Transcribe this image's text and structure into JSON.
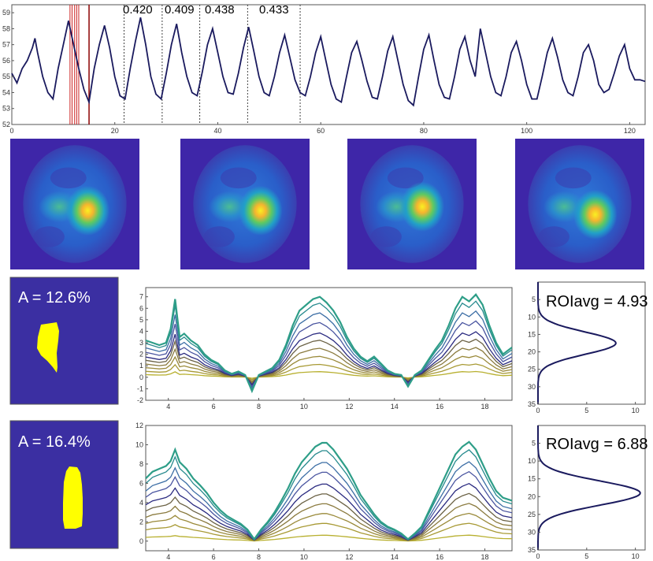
{
  "colors": {
    "navy": "#1a1a5e",
    "mask_bg": "#3b2fa2",
    "mask_fg": "#ffff00",
    "red_line": "#cc2222",
    "dark_red": "#8b0000",
    "frame": "#555555"
  },
  "chart_data": [
    {
      "id": "respiratory_trace",
      "type": "line",
      "xlim": [
        0,
        123
      ],
      "ylim": [
        52,
        59.5
      ],
      "xticks": [
        0,
        20,
        40,
        60,
        80,
        100,
        120
      ],
      "yticks": [
        52,
        53,
        54,
        55,
        56,
        57,
        58,
        59
      ],
      "series": [
        {
          "name": "signal",
          "color": "#1a1a5e",
          "x": [
            0,
            1,
            2,
            3,
            4,
            4.5,
            5,
            6,
            7,
            8,
            9,
            10,
            11,
            12,
            13,
            14,
            15,
            16,
            17,
            18,
            19,
            20,
            21,
            22,
            23,
            24,
            25,
            26,
            27,
            28,
            29,
            30,
            31,
            32,
            33,
            34,
            35,
            36,
            37,
            38,
            39,
            40,
            41,
            42,
            43,
            44,
            45,
            46,
            47,
            48,
            49,
            50,
            51,
            52,
            53,
            54,
            55,
            56,
            57,
            58,
            59,
            60,
            61,
            62,
            63,
            64,
            65,
            66,
            67,
            68,
            69,
            70,
            71,
            72,
            73,
            74,
            75,
            76,
            77,
            78,
            79,
            80,
            81,
            82,
            83,
            84,
            85,
            86,
            87,
            88,
            89,
            90,
            91,
            92,
            93,
            94,
            95,
            96,
            97,
            98,
            99,
            100,
            101,
            102,
            103,
            104,
            105,
            106,
            107,
            108,
            109,
            110,
            111,
            112,
            113,
            114,
            115,
            116,
            117,
            118,
            119,
            120,
            121,
            122,
            123
          ],
          "y": [
            55.2,
            54.6,
            55.5,
            56.0,
            56.8,
            57.4,
            56.5,
            55.0,
            54.0,
            53.6,
            55.5,
            57.0,
            58.5,
            57.0,
            55.5,
            54.2,
            53.4,
            55.5,
            57.0,
            58.2,
            56.8,
            55.0,
            53.8,
            53.6,
            55.5,
            57.2,
            58.7,
            57.0,
            55.0,
            53.9,
            53.6,
            55.2,
            57.0,
            58.3,
            56.5,
            55.0,
            54.0,
            53.8,
            55.3,
            57.0,
            58.0,
            56.5,
            55.0,
            54.0,
            53.9,
            55.2,
            56.8,
            58.1,
            56.6,
            55.0,
            54.0,
            53.8,
            55.0,
            56.5,
            57.6,
            56.2,
            54.8,
            54.0,
            53.8,
            55.0,
            56.5,
            57.5,
            56.0,
            54.5,
            53.6,
            53.4,
            55.0,
            56.5,
            57.2,
            56.0,
            54.7,
            53.7,
            53.6,
            55.0,
            56.6,
            57.5,
            56.0,
            54.5,
            53.5,
            53.2,
            55.0,
            56.7,
            57.6,
            56.0,
            54.5,
            53.7,
            53.6,
            55.0,
            56.7,
            57.5,
            56.0,
            55.0,
            58.0,
            56.5,
            55.0,
            54.0,
            53.8,
            55.0,
            56.5,
            57.2,
            56.0,
            54.5,
            53.6,
            53.6,
            55.0,
            56.5,
            57.4,
            56.2,
            54.8,
            54.0,
            53.8,
            55.0,
            56.5,
            57.0,
            56.0,
            54.5,
            54.0,
            54.2,
            55.2,
            56.3,
            57.0,
            55.5,
            54.8,
            54.8,
            54.7
          ]
        }
      ],
      "markers": {
        "red_lines": [
          11.3,
          11.7,
          12.2,
          12.6,
          13.0
        ],
        "dark_red_lines": [
          15.0
        ],
        "dotted_lines": [
          21.8,
          29.2,
          36.5,
          45.8,
          56.0
        ]
      },
      "annotations": [
        "0.420",
        "0.409",
        "0.438",
        "0.433"
      ]
    },
    {
      "id": "profile_1",
      "type": "line",
      "xlim": [
        3,
        19.2
      ],
      "ylim": [
        -2,
        7.8
      ],
      "xticks": [
        4,
        6,
        8,
        10,
        12,
        14,
        16,
        18
      ],
      "yticks": [
        -2,
        -1,
        0,
        1,
        2,
        3,
        4,
        5,
        6,
        7
      ],
      "series": [
        {
          "name": "s1",
          "color": "#2e9e88",
          "scale": 1.0
        },
        {
          "name": "s2",
          "color": "#278a8e",
          "scale": 0.92
        },
        {
          "name": "s3",
          "color": "#3c6ea5",
          "scale": 0.8
        },
        {
          "name": "s4",
          "color": "#4a55a0",
          "scale": 0.68
        },
        {
          "name": "s5",
          "color": "#2a2a80",
          "scale": 0.55
        },
        {
          "name": "s6",
          "color": "#6b6245",
          "scale": 0.46
        },
        {
          "name": "s7",
          "color": "#8a7a3e",
          "scale": 0.36
        },
        {
          "name": "s8",
          "color": "#9a8a3a",
          "scale": 0.26
        },
        {
          "name": "s9",
          "color": "#a89a35",
          "scale": 0.16
        },
        {
          "name": "s10",
          "color": "#b8b030",
          "scale": 0.07
        }
      ],
      "base_profile": {
        "x": [
          3,
          3.3,
          3.6,
          3.9,
          4.1,
          4.3,
          4.5,
          4.7,
          5.0,
          5.3,
          5.6,
          5.9,
          6.2,
          6.5,
          6.8,
          7.1,
          7.4,
          7.7,
          8.0,
          8.3,
          8.6,
          8.9,
          9.2,
          9.5,
          9.8,
          10.1,
          10.4,
          10.7,
          11.0,
          11.3,
          11.6,
          11.9,
          12.2,
          12.5,
          12.8,
          13.1,
          13.4,
          13.7,
          14.0,
          14.3,
          14.6,
          14.9,
          15.2,
          15.5,
          15.8,
          16.1,
          16.4,
          16.7,
          17.0,
          17.3,
          17.6,
          17.9,
          18.2,
          18.5,
          18.8,
          19.2
        ],
        "y": [
          3.2,
          3.0,
          2.8,
          3.0,
          4.2,
          6.8,
          3.5,
          3.8,
          3.2,
          2.8,
          2.0,
          1.5,
          1.2,
          0.6,
          0.3,
          0.5,
          0.2,
          -1.2,
          0.2,
          0.5,
          0.8,
          1.5,
          2.8,
          4.5,
          5.8,
          6.3,
          6.8,
          7.0,
          6.5,
          5.8,
          4.8,
          3.5,
          2.5,
          1.8,
          1.4,
          1.8,
          1.2,
          0.6,
          0.3,
          0.2,
          -0.8,
          0.2,
          0.6,
          1.5,
          2.4,
          3.2,
          4.5,
          6.0,
          7.0,
          6.6,
          7.2,
          6.3,
          4.5,
          3.0,
          2.0,
          2.6
        ]
      },
      "mask_label": "A = 12.6%",
      "roi_label": "ROIavg = 4.93",
      "histogram": {
        "ylim": [
          0,
          35
        ],
        "xlim": [
          0,
          11
        ],
        "xticks": [
          0,
          5,
          10
        ],
        "yticks": [
          5,
          10,
          15,
          20,
          25,
          30,
          35
        ],
        "peak_y": 17.5,
        "peak_x": 8.0,
        "sigma": 3.2
      }
    },
    {
      "id": "profile_2",
      "type": "line",
      "xlim": [
        3,
        19.2
      ],
      "ylim": [
        -1,
        12
      ],
      "xticks": [
        4,
        6,
        8,
        10,
        12,
        14,
        16,
        18
      ],
      "yticks": [
        0,
        2,
        4,
        6,
        8,
        10,
        12
      ],
      "series": [
        {
          "name": "s1",
          "color": "#2e9e88",
          "scale": 1.0
        },
        {
          "name": "s2",
          "color": "#278a8e",
          "scale": 0.92
        },
        {
          "name": "s3",
          "color": "#3c6ea5",
          "scale": 0.8
        },
        {
          "name": "s4",
          "color": "#4a55a0",
          "scale": 0.7
        },
        {
          "name": "s5",
          "color": "#2a2a80",
          "scale": 0.58
        },
        {
          "name": "s6",
          "color": "#6b6245",
          "scale": 0.48
        },
        {
          "name": "s7",
          "color": "#8a7a3e",
          "scale": 0.38
        },
        {
          "name": "s8",
          "color": "#9a8a3a",
          "scale": 0.28
        },
        {
          "name": "s9",
          "color": "#a89a35",
          "scale": 0.18
        },
        {
          "name": "s10",
          "color": "#b8b030",
          "scale": 0.06
        }
      ],
      "base_profile": {
        "x": [
          3,
          3.3,
          3.6,
          3.9,
          4.1,
          4.3,
          4.5,
          4.8,
          5.1,
          5.4,
          5.7,
          6.0,
          6.3,
          6.6,
          6.9,
          7.2,
          7.5,
          7.8,
          8.1,
          8.4,
          8.7,
          9.0,
          9.3,
          9.6,
          9.9,
          10.2,
          10.5,
          10.8,
          11.0,
          11.3,
          11.6,
          11.9,
          12.2,
          12.5,
          12.8,
          13.1,
          13.4,
          13.7,
          14.0,
          14.3,
          14.6,
          14.9,
          15.2,
          15.5,
          15.8,
          16.1,
          16.4,
          16.7,
          17.0,
          17.3,
          17.6,
          17.9,
          18.2,
          18.5,
          18.8,
          19.2
        ],
        "y": [
          6.5,
          7.2,
          7.5,
          7.8,
          8.3,
          9.5,
          8.2,
          7.5,
          6.5,
          5.8,
          5.0,
          4.0,
          3.2,
          2.6,
          2.2,
          1.8,
          1.2,
          0.2,
          1.2,
          2.0,
          3.0,
          4.2,
          5.5,
          7.0,
          8.2,
          9.0,
          9.8,
          10.2,
          10.2,
          9.5,
          8.5,
          7.5,
          6.2,
          4.8,
          3.8,
          2.8,
          2.0,
          1.5,
          1.2,
          0.8,
          0.2,
          0.8,
          1.5,
          3.0,
          4.5,
          6.0,
          7.5,
          9.0,
          9.8,
          10.3,
          9.5,
          8.0,
          6.5,
          5.2,
          4.5,
          4.2
        ]
      },
      "mask_label": "A = 16.4%",
      "roi_label": "ROIavg = 6.88",
      "histogram": {
        "ylim": [
          0,
          35
        ],
        "xlim": [
          0,
          11
        ],
        "xticks": [
          0,
          5,
          10
        ],
        "yticks": [
          5,
          10,
          15,
          20,
          25,
          30,
          35
        ],
        "peak_y": 19.0,
        "peak_x": 10.5,
        "sigma": 3.4
      }
    }
  ],
  "heatmaps": [
    {
      "name": "frame-1",
      "hot_x": 0.6,
      "hot_y": 0.55,
      "left_lobe": 0.3
    },
    {
      "name": "frame-2",
      "hot_x": 0.62,
      "hot_y": 0.55,
      "left_lobe": 0.28
    },
    {
      "name": "frame-3",
      "hot_x": 0.58,
      "hot_y": 0.52,
      "left_lobe": 0.25
    },
    {
      "name": "frame-4",
      "hot_x": 0.62,
      "hot_y": 0.58,
      "left_lobe": 0.2
    }
  ]
}
